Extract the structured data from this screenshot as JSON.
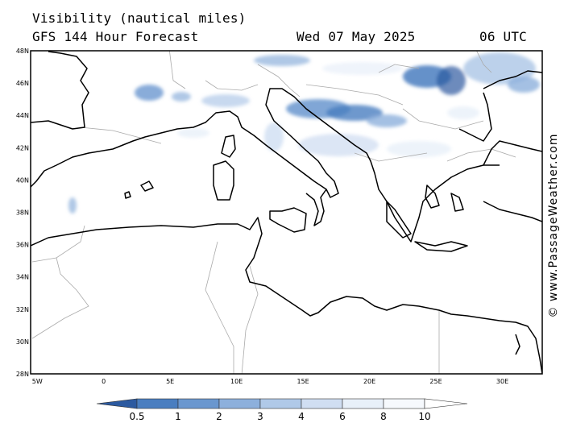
{
  "header": {
    "title": "Visibility (nautical miles)",
    "model": "GFS 144 Hour Forecast",
    "date": "Wed 07 May 2025",
    "time": "06 UTC"
  },
  "map": {
    "lat_labels": [
      "48N",
      "46N",
      "44N",
      "42N",
      "40N",
      "38N",
      "36N",
      "34N",
      "32N",
      "30N",
      "28N"
    ],
    "lon_labels": [
      "5W",
      "0",
      "5E",
      "10E",
      "15E",
      "20E",
      "25E",
      "30E"
    ],
    "lat_values": [
      48,
      46,
      44,
      42,
      40,
      38,
      36,
      34,
      32,
      30,
      28
    ],
    "lon_values": [
      -5,
      0,
      5,
      10,
      15,
      20,
      25,
      30
    ],
    "lon_range": [
      -5.5,
      33
    ],
    "lat_range": [
      28,
      48
    ],
    "land_outline_color": "#000000",
    "border_color": "#aaaaaa"
  },
  "legend": {
    "labels": [
      "0.5",
      "1",
      "2",
      "3",
      "4",
      "6",
      "8",
      "10"
    ],
    "colors": [
      "#2c5aa0",
      "#4a7ec0",
      "#6a97cf",
      "#8db0dc",
      "#b0c9e8",
      "#d0def2",
      "#e8f0f9",
      "#f6f9fd",
      "#ffffff"
    ]
  },
  "credit": "© www.PassageWeather.com"
}
